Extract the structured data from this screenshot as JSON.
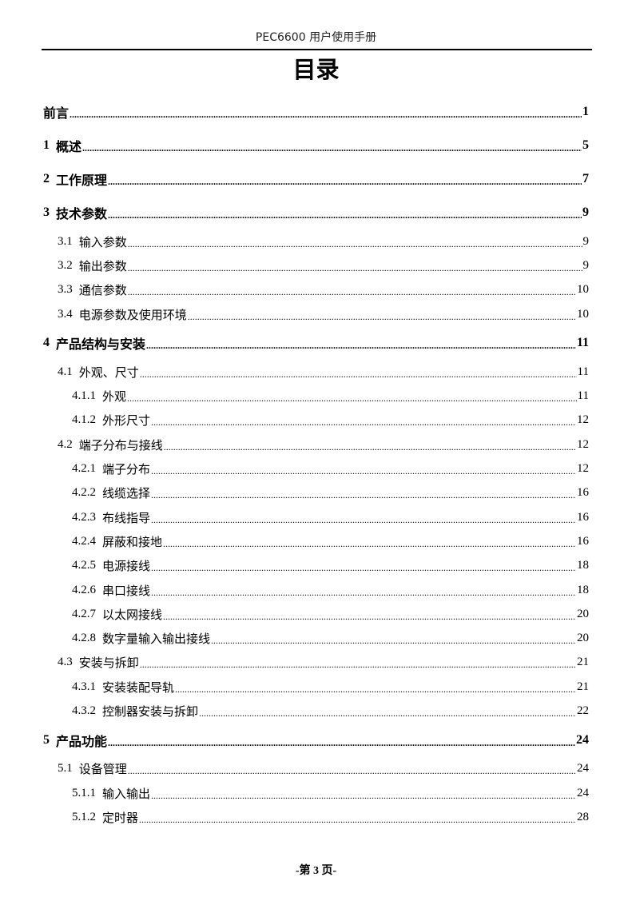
{
  "header": {
    "title": "PEC6600 用户使用手册"
  },
  "page_title": "目录",
  "toc": [
    {
      "level": 1,
      "num": "",
      "title": "前言",
      "page": "1"
    },
    {
      "level": 1,
      "num": "1",
      "title": "概述",
      "page": "5"
    },
    {
      "level": 1,
      "num": "2",
      "title": "工作原理",
      "page": "7"
    },
    {
      "level": 1,
      "num": "3",
      "title": "技术参数",
      "page": "9"
    },
    {
      "level": 2,
      "num": "3.1",
      "title": "输入参数",
      "page": "9"
    },
    {
      "level": 2,
      "num": "3.2",
      "title": "输出参数",
      "page": "9"
    },
    {
      "level": 2,
      "num": "3.3",
      "title": "通信参数",
      "page": "10"
    },
    {
      "level": 2,
      "num": "3.4",
      "title": "电源参数及使用环境",
      "page": "10"
    },
    {
      "level": 1,
      "num": "4",
      "title": "产品结构与安装",
      "page": "11"
    },
    {
      "level": 2,
      "num": "4.1",
      "title": "外观、尺寸",
      "page": "11"
    },
    {
      "level": 3,
      "num": "4.1.1",
      "title": "外观",
      "page": "11"
    },
    {
      "level": 3,
      "num": "4.1.2",
      "title": "外形尺寸",
      "page": "12"
    },
    {
      "level": 2,
      "num": "4.2",
      "title": "端子分布与接线",
      "page": "12"
    },
    {
      "level": 3,
      "num": "4.2.1",
      "title": "端子分布",
      "page": "12"
    },
    {
      "level": 3,
      "num": "4.2.2",
      "title": "线缆选择",
      "page": "16"
    },
    {
      "level": 3,
      "num": "4.2.3",
      "title": "布线指导",
      "page": "16"
    },
    {
      "level": 3,
      "num": "4.2.4",
      "title": "屏蔽和接地",
      "page": "16"
    },
    {
      "level": 3,
      "num": "4.2.5",
      "title": "电源接线",
      "page": "18"
    },
    {
      "level": 3,
      "num": "4.2.6",
      "title": "串口接线",
      "page": "18"
    },
    {
      "level": 3,
      "num": "4.2.7",
      "title": "以太网接线",
      "page": "20"
    },
    {
      "level": 3,
      "num": "4.2.8",
      "title": "数字量输入输出接线",
      "page": "20"
    },
    {
      "level": 2,
      "num": "4.3",
      "title": "安装与拆卸",
      "page": "21"
    },
    {
      "level": 3,
      "num": "4.3.1",
      "title": "安装装配导轨",
      "page": "21"
    },
    {
      "level": 3,
      "num": "4.3.2",
      "title": "控制器安装与拆卸",
      "page": "22"
    },
    {
      "level": 1,
      "num": "5",
      "title": "产品功能",
      "page": "24"
    },
    {
      "level": 2,
      "num": "5.1",
      "title": "设备管理",
      "page": "24"
    },
    {
      "level": 3,
      "num": "5.1.1",
      "title": "输入输出",
      "page": "24"
    },
    {
      "level": 3,
      "num": "5.1.2",
      "title": "定时器",
      "page": "28"
    }
  ],
  "footer": {
    "page_label": "-第 3 页-"
  }
}
